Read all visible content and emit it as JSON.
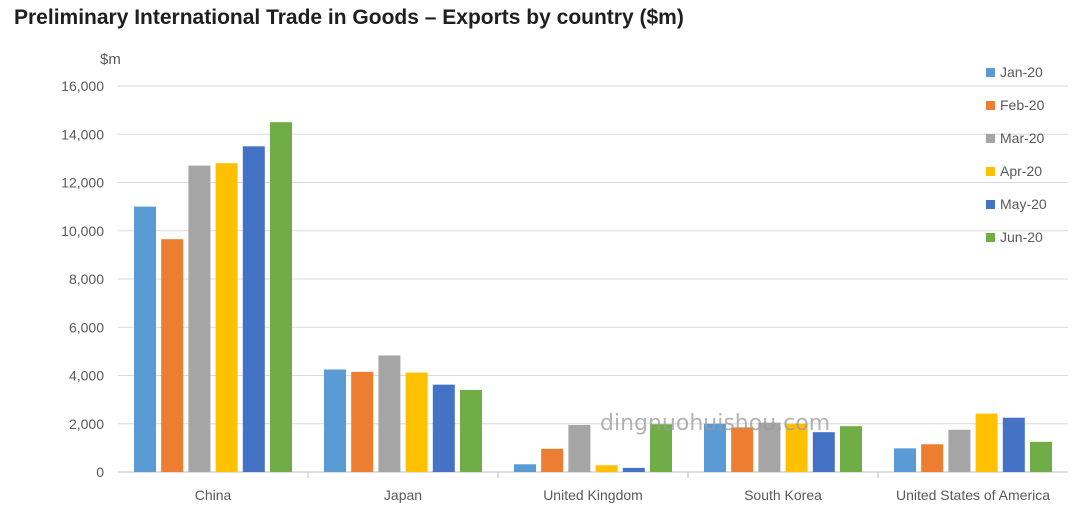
{
  "chart_data": {
    "type": "bar",
    "title": "Preliminary International Trade in Goods – Exports by country ($m)",
    "ylabel": "$m",
    "xlabel": "",
    "ylim": [
      0,
      16000
    ],
    "yticks": [
      0,
      2000,
      4000,
      6000,
      8000,
      10000,
      12000,
      14000,
      16000
    ],
    "ytick_labels": [
      "0",
      "2,000",
      "4,000",
      "6,000",
      "8,000",
      "10,000",
      "12,000",
      "14,000",
      "16,000"
    ],
    "grid": true,
    "legend_position": "right",
    "categories": [
      "China",
      "Japan",
      "United Kingdom",
      "South Korea",
      "United States of America"
    ],
    "series": [
      {
        "name": "Jan-20",
        "color": "#5b9bd5",
        "values": [
          11000,
          4250,
          320,
          2000,
          980
        ]
      },
      {
        "name": "Feb-20",
        "color": "#ed7d31",
        "values": [
          9650,
          4150,
          960,
          1850,
          1150
        ]
      },
      {
        "name": "Mar-20",
        "color": "#a5a5a5",
        "values": [
          12700,
          4830,
          1950,
          2050,
          1750
        ]
      },
      {
        "name": "Apr-20",
        "color": "#ffc000",
        "values": [
          12800,
          4120,
          280,
          2000,
          2420
        ]
      },
      {
        "name": "May-20",
        "color": "#4472c4",
        "values": [
          13500,
          3620,
          170,
          1650,
          2250
        ]
      },
      {
        "name": "Jun-20",
        "color": "#70ad47",
        "values": [
          14500,
          3400,
          1980,
          1900,
          1250
        ]
      }
    ],
    "watermark": "dingnuohuishou.com"
  }
}
